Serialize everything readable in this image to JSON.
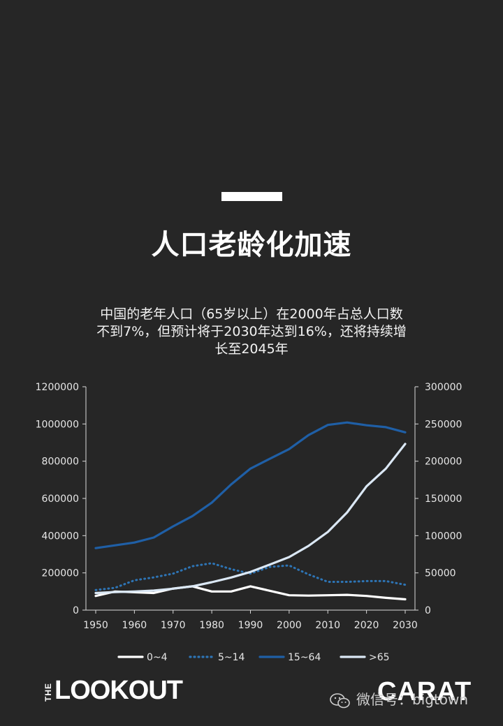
{
  "title": "人口老龄化加速",
  "subtitle_lines": [
    "中国的老年人口（65岁以上）在2000年占总人口数",
    "不到7%，但预计将于2030年达到16%，还将持续增",
    "长至2045年"
  ],
  "chart_data": {
    "type": "line",
    "x": [
      1950,
      1955,
      1960,
      1965,
      1970,
      1975,
      1980,
      1985,
      1990,
      1995,
      2000,
      2005,
      2010,
      2015,
      2020,
      2025,
      2030
    ],
    "x_ticks": [
      1950,
      1960,
      1970,
      1980,
      1990,
      2000,
      2010,
      2020,
      2030
    ],
    "y_left_ticks": [
      "0",
      "200000",
      "400000",
      "600000",
      "800000",
      "1000000",
      "1200000"
    ],
    "y_right_ticks": [
      "0",
      "50000",
      "100000",
      "150000",
      "200000",
      "250000",
      "300000"
    ],
    "y_left_lim": [
      0,
      1200000
    ],
    "y_right_lim": [
      0,
      300000
    ],
    "grid": false,
    "legend_position": "bottom",
    "series": [
      {
        "name": "0~4",
        "axis": "right",
        "style": "solid",
        "color": "#ffffff",
        "values": [
          19000,
          25000,
          24000,
          23000,
          29000,
          32000,
          25000,
          25000,
          32000,
          26000,
          20000,
          19500,
          20000,
          20500,
          19000,
          16500,
          14500
        ]
      },
      {
        "name": "5~14",
        "axis": "right",
        "style": "dotted",
        "color": "#2e75b6",
        "values": [
          27000,
          30000,
          40000,
          44000,
          49000,
          59000,
          63000,
          55000,
          49000,
          58000,
          60000,
          48000,
          38000,
          38000,
          39000,
          39000,
          34000
        ]
      },
      {
        "name": "15~64",
        "axis": "left",
        "style": "solid",
        "color": "#1f5fa6",
        "values": [
          333000,
          348000,
          363000,
          390000,
          450000,
          505000,
          577000,
          675000,
          760000,
          813000,
          865000,
          940000,
          995000,
          1008000,
          993000,
          983000,
          955000
        ]
      },
      {
        "name": ">65",
        "axis": "left",
        "style": "solid",
        "color": "#dbe8f5",
        "values": [
          92000,
          97000,
          100000,
          105000,
          115000,
          128000,
          150000,
          175000,
          205000,
          245000,
          285000,
          345000,
          420000,
          525000,
          665000,
          760000,
          893000
        ]
      }
    ]
  },
  "logos": {
    "lookout_the": "THE",
    "lookout_word": "LOOKOUT",
    "carat": "CARAT"
  },
  "watermark": "微信号：bigtown",
  "colors": {
    "background": "#262626",
    "axis": "#d9d9d9"
  }
}
